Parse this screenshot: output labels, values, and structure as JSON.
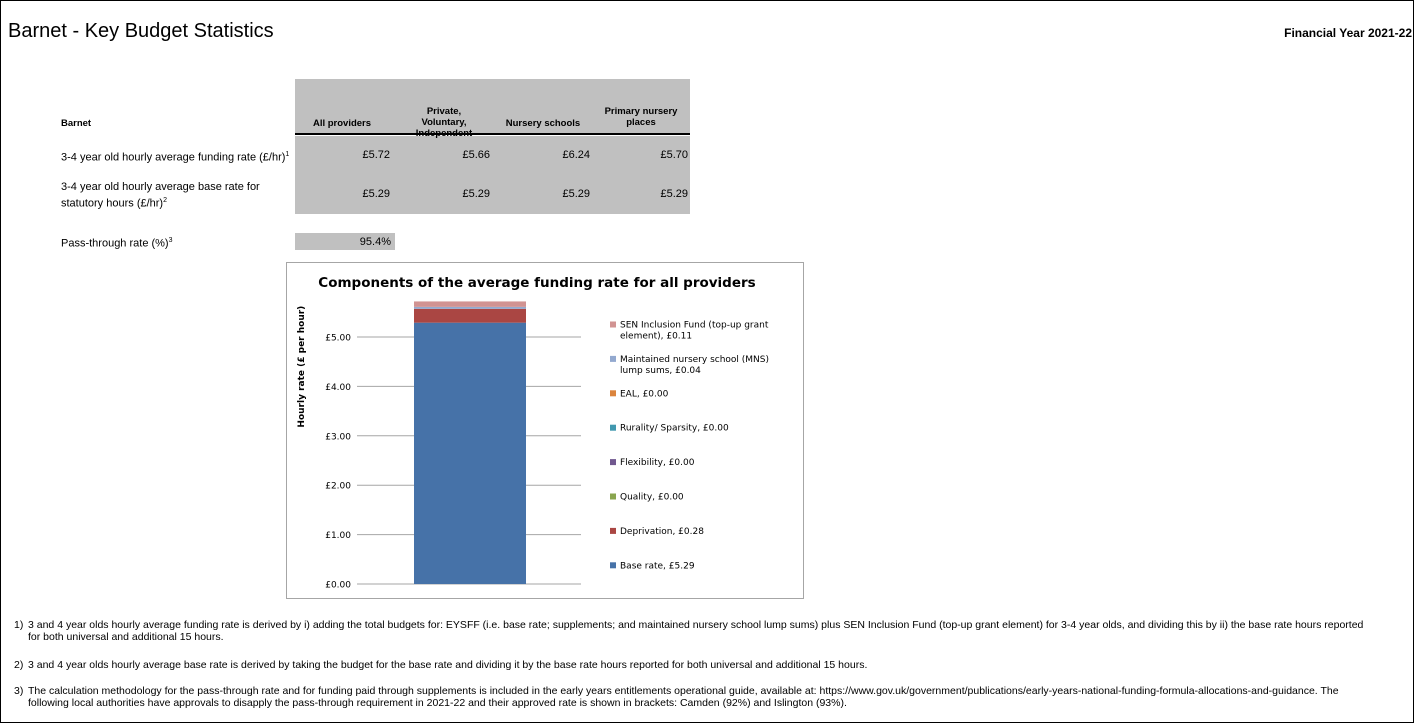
{
  "header": {
    "title": "Barnet - Key Budget Statistics",
    "financial_year": "Financial Year 2021-22"
  },
  "table": {
    "row_header": "Barnet",
    "columns": [
      "All providers",
      "Private, Voluntary, Independent",
      "Nursery schools",
      "Primary nursery places"
    ],
    "rows": [
      {
        "label": "3-4 year old hourly average funding rate (£/hr)",
        "sup": "1",
        "values": [
          "£5.72",
          "£5.66",
          "£6.24",
          "£5.70"
        ]
      },
      {
        "label": "3-4 year old hourly average base rate for statutory hours (£/hr)",
        "sup": "2",
        "values": [
          "£5.29",
          "£5.29",
          "£5.29",
          "£5.29"
        ]
      }
    ],
    "pass_through": {
      "label": "Pass-through rate (%)",
      "sup": "3",
      "value": "95.4%"
    }
  },
  "chart_data": {
    "type": "bar",
    "stacked": true,
    "title": "Components of the average funding rate for all providers",
    "ylabel": "Hourly rate (£ per hour)",
    "xlabel": "",
    "ylim": [
      0,
      5.72
    ],
    "yticks": [
      0,
      1,
      2,
      3,
      4,
      5
    ],
    "ytick_labels": [
      "£0.00",
      "£1.00",
      "£2.00",
      "£3.00",
      "£4.00",
      "£5.00"
    ],
    "grid": true,
    "legend_position": "right",
    "series": [
      {
        "name": "Base rate, £5.29",
        "value": 5.29,
        "color": "#4672a8"
      },
      {
        "name": "Deprivation, £0.28",
        "value": 0.28,
        "color": "#aa4643"
      },
      {
        "name": "Quality, £0.00",
        "value": 0.0,
        "color": "#89a54e"
      },
      {
        "name": "Flexibility, £0.00",
        "value": 0.0,
        "color": "#71588f"
      },
      {
        "name": "Rurality/ Sparsity, £0.00",
        "value": 0.0,
        "color": "#4198af"
      },
      {
        "name": "EAL, £0.00",
        "value": 0.0,
        "color": "#db843d"
      },
      {
        "name": "Maintained nursery school (MNS) lump sums, £0.04",
        "value": 0.04,
        "color": "#93a9cf"
      },
      {
        "name": "SEN Inclusion Fund (top-up grant element), £0.11",
        "value": 0.11,
        "color": "#d19392"
      }
    ]
  },
  "notes": [
    {
      "num": "1)",
      "text": "3 and 4 year olds hourly average funding rate is derived by i) adding the total budgets for: EYSFF (i.e. base rate; supplements; and maintained nursery school lump sums) plus SEN Inclusion Fund (top-up grant element) for 3-4 year olds, and dividing this by ii) the base rate hours reported for both universal and additional 15 hours."
    },
    {
      "num": "2)",
      "text": "3 and 4 year olds hourly average base rate is derived by taking the budget for the base rate and dividing it by the base rate hours reported for both universal and additional 15 hours."
    },
    {
      "num": "3)",
      "text": "The calculation methodology for the pass-through rate and for funding paid through supplements is included in the early years entitlements operational guide, available at: https://www.gov.uk/government/publications/early-years-national-funding-formula-allocations-and-guidance. The following local authorities have approvals to disapply the pass-through requirement in 2021-22 and their approved rate is shown in brackets: Camden (92%) and Islington (93%)."
    }
  ]
}
